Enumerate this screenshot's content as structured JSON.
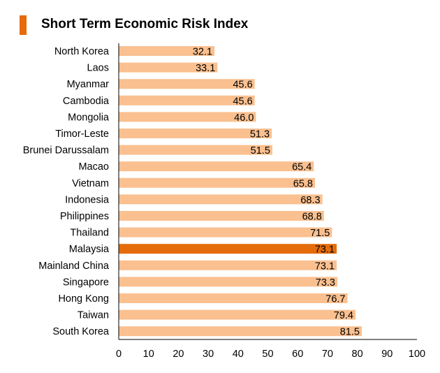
{
  "colors": {
    "accent": "#E46C0A",
    "bar": "#FAC090",
    "highlight": "#E46C0A",
    "axis": "#000000"
  },
  "chart_data": {
    "type": "bar",
    "orientation": "horizontal",
    "title": "Short Term Economic Risk Index",
    "xlabel": "",
    "ylabel": "",
    "xlim": [
      0,
      100
    ],
    "xticks": [
      0,
      10,
      20,
      30,
      40,
      50,
      60,
      70,
      80,
      90,
      100
    ],
    "grid": false,
    "highlight_category": "Malaysia",
    "categories": [
      "North Korea",
      "Laos",
      "Myanmar",
      "Cambodia",
      "Mongolia",
      "Timor-Leste",
      "Brunei Darussalam",
      "Macao",
      "Vietnam",
      "Indonesia",
      "Philippines",
      "Thailand",
      "Malaysia",
      "Mainland China",
      "Singapore",
      "Hong Kong",
      "Taiwan",
      "South Korea"
    ],
    "values": [
      32.1,
      33.1,
      45.6,
      45.6,
      46.0,
      51.3,
      51.5,
      65.4,
      65.8,
      68.3,
      68.8,
      71.5,
      73.1,
      73.1,
      73.3,
      76.7,
      79.4,
      81.5
    ],
    "value_labels": [
      "32.1",
      "33.1",
      "45.6",
      "45.6",
      "46.0",
      "51.3",
      "51.5",
      "65.4",
      "65.8",
      "68.3",
      "68.8",
      "71.5",
      "73.1",
      "73.1",
      "73.3",
      "76.7",
      "79.4",
      "81.5"
    ]
  }
}
